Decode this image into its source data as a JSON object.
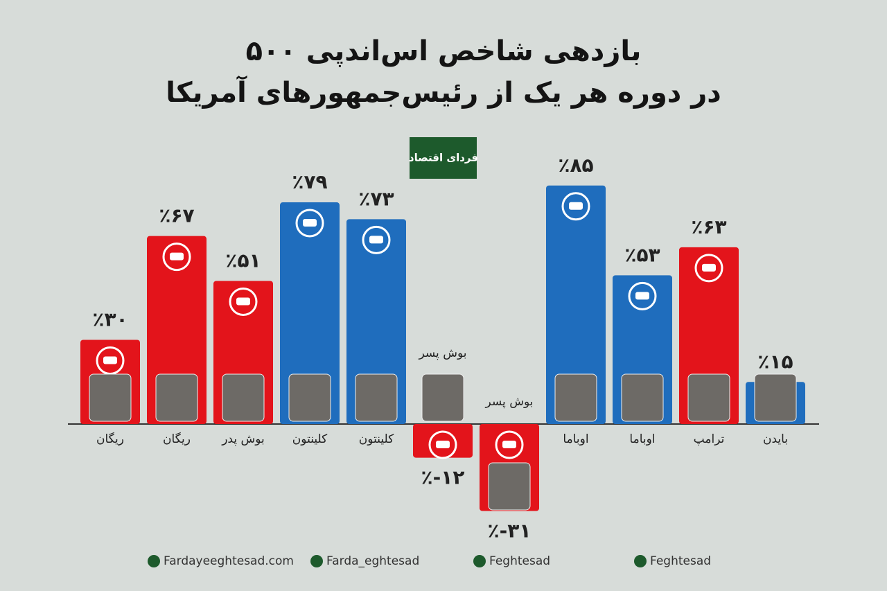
{
  "title_lines": [
    "بازدهی شاخص اس‌اندپی ۵۰۰",
    "در دوره هر یک از رئیس‌جمهورهای آمریکا"
  ],
  "logo": "فردای اقتصاد",
  "chart_data": {
    "type": "bar",
    "categories": [
      "ریگان",
      "ریگان",
      "بوش پدر",
      "کلینتون",
      "کلینتون",
      "بوش پسر",
      "بوش پسر",
      "اوباما",
      "اوباما",
      "ترامپ",
      "بایدن"
    ],
    "values": [
      30,
      67,
      51,
      79,
      73,
      -12,
      -31,
      85,
      53,
      63,
      15
    ],
    "value_labels": [
      "٪۳۰",
      "٪۶۷",
      "٪۵۱",
      "٪۷۹",
      "٪۷۳",
      "٪-۱۲",
      "٪-۳۱",
      "٪۸۵",
      "٪۵۳",
      "٪۶۳",
      "٪۱۵"
    ],
    "colors": [
      "#e3141b",
      "#e3141b",
      "#e3141b",
      "#1f6dbd",
      "#1f6dbd",
      "#e3141b",
      "#e3141b",
      "#1f6dbd",
      "#1f6dbd",
      "#e3141b",
      "#1f6dbd"
    ]
  },
  "footer": [
    "Fardayeeghtesad.com",
    "Farda_eghtesad",
    "Feghtesad",
    "Feghtesad"
  ]
}
